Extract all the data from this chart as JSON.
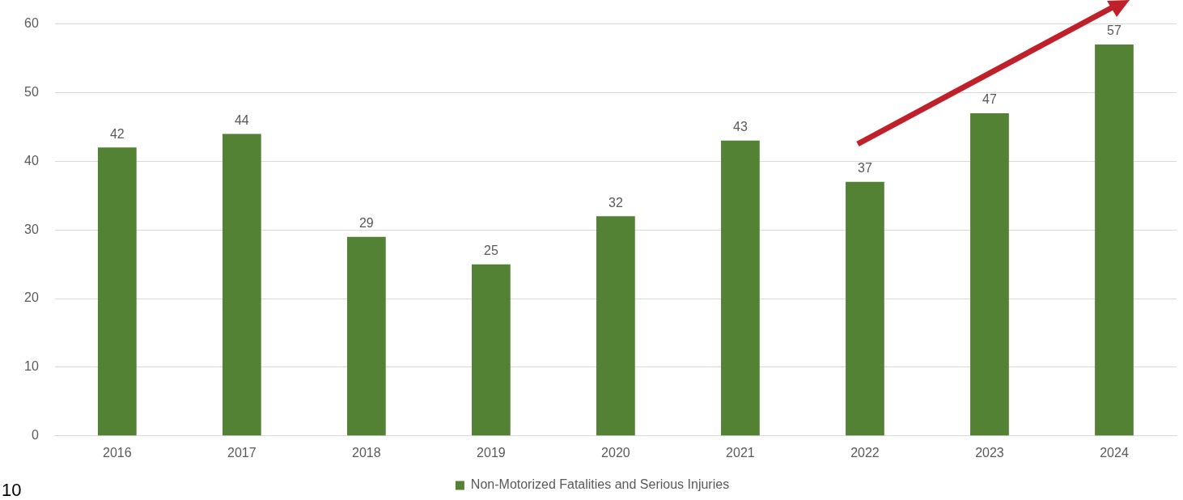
{
  "chart_data": {
    "type": "bar",
    "categories": [
      "2016",
      "2017",
      "2018",
      "2019",
      "2020",
      "2021",
      "2022",
      "2023",
      "2024"
    ],
    "series": [
      {
        "name": "Non-Motorized Fatalities and Serious Injuries",
        "color": "#548235",
        "values": [
          42,
          44,
          29,
          25,
          32,
          43,
          37,
          47,
          57
        ]
      }
    ],
    "ylim": [
      0,
      60
    ],
    "yticks": [
      0,
      10,
      20,
      30,
      40,
      50,
      60
    ],
    "grid": "y",
    "legend": "bottom",
    "data_labels": true,
    "annotations": [
      "10"
    ]
  }
}
